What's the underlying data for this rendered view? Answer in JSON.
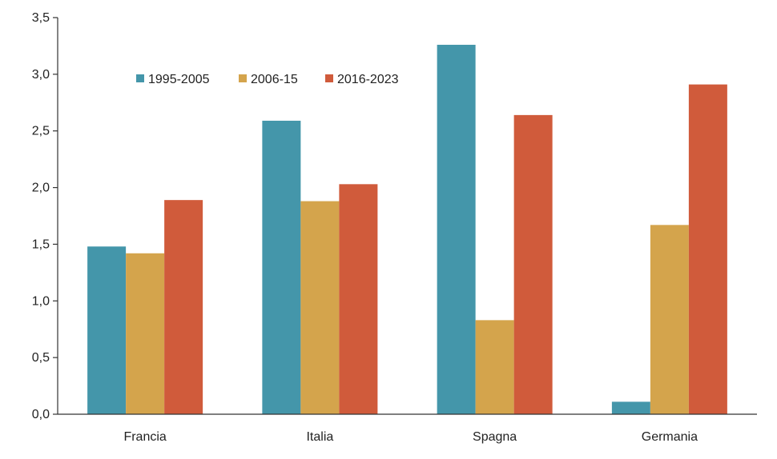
{
  "chart_data": {
    "type": "bar",
    "categories": [
      "Francia",
      "Italia",
      "Spagna",
      "Germania"
    ],
    "series": [
      {
        "name": "1995-2005",
        "color": "#4496aa",
        "values": [
          1.48,
          2.59,
          3.26,
          0.11
        ]
      },
      {
        "name": "2006-15",
        "color": "#d4a44c",
        "values": [
          1.42,
          1.88,
          0.83,
          1.67
        ]
      },
      {
        "name": "2016-2023",
        "color": "#d05b3b",
        "values": [
          1.89,
          2.03,
          2.64,
          2.91
        ]
      }
    ],
    "y_ticks": [
      "0,0",
      "0,5",
      "1,0",
      "1,5",
      "2,0",
      "2,5",
      "3,0",
      "3,5"
    ],
    "ylim": [
      0,
      3.5
    ],
    "grid": false,
    "legend_position": "top-left"
  }
}
